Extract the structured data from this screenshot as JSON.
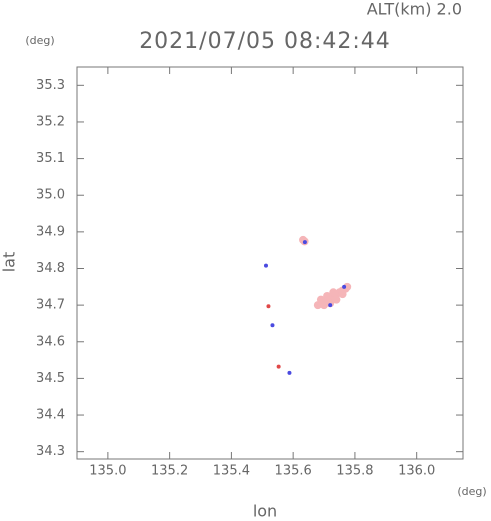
{
  "chart_data": {
    "type": "scatter",
    "title": "2021/07/05 08:42:44",
    "subtitle": "ALT(km) 2.0",
    "x_label": "lon",
    "y_label": "lat",
    "x_unit": "(deg)",
    "y_unit": "(deg)",
    "xlim": [
      134.9,
      136.15
    ],
    "ylim": [
      34.28,
      35.35
    ],
    "xticks": [
      {
        "value": 135,
        "label": "135.0"
      },
      135.2,
      135.4,
      135.6,
      135.8,
      {
        "value": 136,
        "label": "136.0"
      }
    ],
    "yticks": [
      34.3,
      34.4,
      34.5,
      34.6,
      34.7,
      34.8,
      34.9,
      {
        "value": 35,
        "label": "35.0"
      },
      35.1,
      35.2,
      35.3
    ],
    "series": [
      {
        "color": "#f5b5b8",
        "x": [
          135.632,
          135.637,
          135.68,
          135.69,
          135.7,
          135.71,
          135.72,
          135.73,
          135.74,
          135.75,
          135.76,
          135.77,
          135.7,
          135.72,
          135.74,
          135.76,
          135.775,
          135.73,
          135.71,
          135.69
        ],
        "values": [
          34.878,
          34.874,
          34.7,
          34.705,
          34.71,
          34.715,
          34.72,
          34.725,
          34.73,
          34.735,
          34.74,
          34.745,
          34.7,
          34.705,
          34.715,
          34.73,
          34.75,
          34.735,
          34.725,
          34.715
        ]
      },
      {
        "color": "#e04848",
        "x": [
          135.52,
          135.553
        ],
        "values": [
          34.697,
          34.532
        ]
      },
      {
        "color": "#4a4ae0",
        "x": [
          135.512,
          135.533,
          135.588,
          135.638,
          135.72,
          135.765
        ],
        "values": [
          34.808,
          34.645,
          34.515,
          34.872,
          34.7,
          34.75
        ]
      }
    ]
  }
}
